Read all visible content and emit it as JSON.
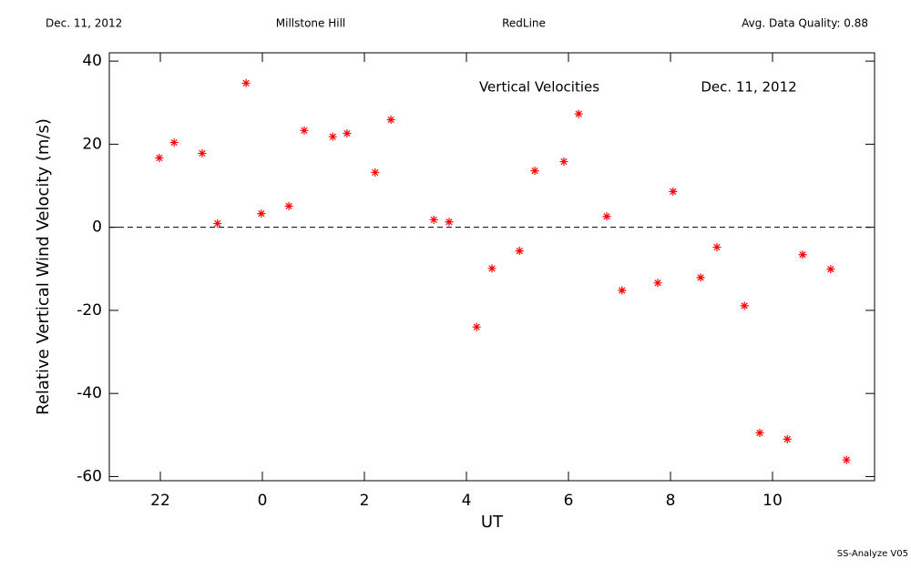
{
  "header": {
    "date": "Dec. 11, 2012",
    "site": "Millstone Hill",
    "instrument": "RedLine",
    "quality": "Avg. Data Quality: 0.88"
  },
  "footer": "SS-Analyze V05",
  "chart_data": {
    "type": "scatter",
    "title": "Vertical Velocities",
    "subtitle": "Dec. 11, 2012",
    "x_label": "UT",
    "y_label": "Relative Vertical Wind Velocity (m/s)",
    "color": "#ff0000",
    "xlim": [
      -3,
      12
    ],
    "xticks": [
      {
        "value": -2,
        "label": "22"
      },
      0,
      2,
      4,
      6,
      8,
      10
    ],
    "ylim": [
      -61,
      42
    ],
    "yticks": [
      -60,
      -40,
      -20,
      0,
      20,
      40
    ],
    "x": [
      -2.02,
      -1.73,
      -1.18,
      -0.88,
      -0.32,
      -0.02,
      0.52,
      0.82,
      1.38,
      1.66,
      2.21,
      2.52,
      3.36,
      3.66,
      4.2,
      4.5,
      5.04,
      5.34,
      5.91,
      6.2,
      6.75,
      7.05,
      7.75,
      8.05,
      8.59,
      8.91,
      9.45,
      9.75,
      10.29,
      10.59,
      11.14,
      11.45
    ],
    "values": [
      16.7,
      20.4,
      17.8,
      0.9,
      34.7,
      3.3,
      5.1,
      23.3,
      21.8,
      22.6,
      13.2,
      25.9,
      1.8,
      1.3,
      -24.0,
      -9.9,
      -5.7,
      13.6,
      15.8,
      27.3,
      2.6,
      -15.2,
      -13.4,
      8.6,
      -12.1,
      -4.8,
      -18.9,
      -49.5,
      -51.0,
      -6.6,
      -10.1,
      -56.0
    ]
  }
}
